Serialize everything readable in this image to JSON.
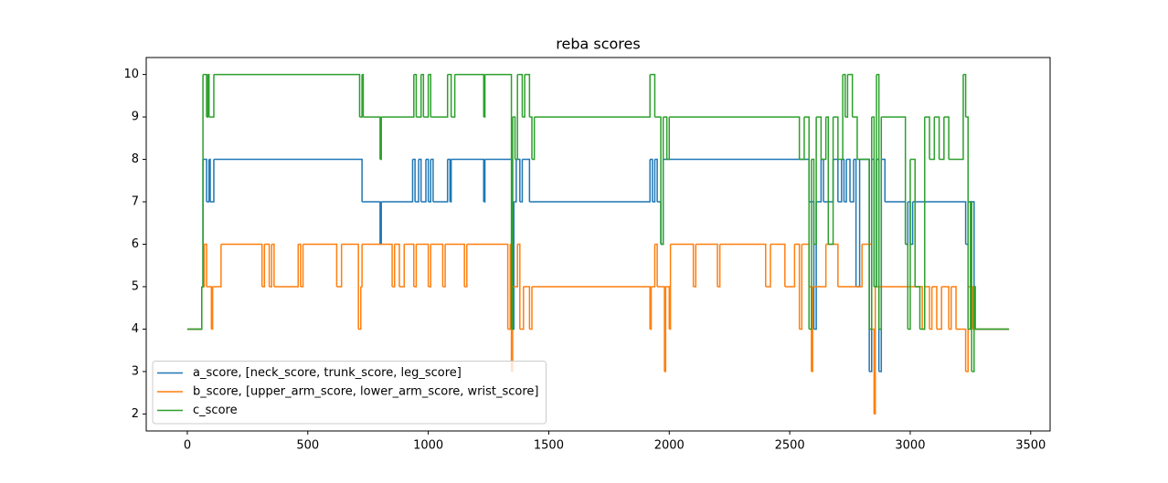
{
  "chart_data": {
    "type": "line",
    "drawstyle": "steps-post",
    "title": "reba scores",
    "xlim": [
      -170.5,
      3580.5
    ],
    "ylim": [
      1.6,
      10.4
    ],
    "xticks": [
      0,
      500,
      1000,
      1500,
      2000,
      2500,
      3000,
      3500
    ],
    "yticks": [
      2,
      3,
      4,
      5,
      6,
      7,
      8,
      9,
      10
    ],
    "legend": "lower left",
    "series": [
      {
        "name": "a_score, [neck_score, trunk_score, leg_score]",
        "color": "#1f77b4",
        "x": [
          0,
          60,
          65,
          80,
          90,
          95,
          110,
          725,
          800,
          805,
          935,
          945,
          960,
          970,
          990,
          1000,
          1010,
          1020,
          1080,
          1090,
          1095,
          1230,
          1235,
          1350,
          1355,
          1365,
          1380,
          1390,
          1420,
          1920,
          1930,
          1940,
          1950,
          1965,
          1975,
          2580,
          2600,
          2610,
          2630,
          2640,
          2680,
          2700,
          2715,
          2725,
          2735,
          2750,
          2765,
          2775,
          2790,
          2830,
          2840,
          2850,
          2860,
          2870,
          2880,
          2895,
          2980,
          2990,
          3000,
          3010,
          3230,
          3240,
          3265,
          3410
        ],
        "values": [
          4,
          5,
          8,
          7,
          8,
          7,
          8,
          7,
          6,
          7,
          8,
          7,
          8,
          7,
          8,
          7,
          8,
          7,
          8,
          7,
          8,
          7,
          8,
          4,
          7,
          8,
          7,
          8,
          7,
          8,
          7,
          8,
          7,
          6,
          8,
          7,
          4,
          7,
          8,
          7,
          8,
          7,
          8,
          7,
          8,
          7,
          8,
          5,
          8,
          3,
          8,
          5,
          8,
          3,
          8,
          7,
          6,
          7,
          6,
          7,
          6,
          7,
          4,
          4
        ]
      },
      {
        "name": "b_score, [upper_arm_score, lower_arm_score, wrist_score]",
        "color": "#ff7f0e",
        "x": [
          0,
          60,
          70,
          80,
          100,
          105,
          140,
          310,
          320,
          340,
          350,
          360,
          460,
          470,
          480,
          620,
          640,
          710,
          720,
          725,
          850,
          860,
          880,
          900,
          940,
          950,
          1000,
          1010,
          1060,
          1070,
          1150,
          1160,
          1330,
          1340,
          1345,
          1350,
          1370,
          1380,
          1395,
          1420,
          1430,
          1920,
          1925,
          1940,
          1950,
          1980,
          1985,
          2000,
          2005,
          2100,
          2110,
          2200,
          2210,
          2400,
          2420,
          2480,
          2520,
          2540,
          2550,
          2580,
          2590,
          2595,
          2650,
          2700,
          2800,
          2840,
          2850,
          2855,
          3050,
          3060,
          3080,
          3090,
          3110,
          3130,
          3160,
          3170,
          3190,
          3230,
          3240,
          3260,
          3410
        ],
        "values": [
          4,
          5,
          6,
          5,
          4,
          5,
          6,
          5,
          6,
          5,
          6,
          5,
          6,
          5,
          6,
          5,
          6,
          4,
          5,
          6,
          5,
          6,
          5,
          6,
          5,
          6,
          5,
          6,
          5,
          6,
          5,
          6,
          4,
          6,
          3,
          5,
          6,
          4,
          5,
          4,
          5,
          4,
          5,
          6,
          5,
          3,
          5,
          4,
          6,
          5,
          6,
          5,
          6,
          5,
          6,
          5,
          6,
          4,
          6,
          5,
          3,
          5,
          6,
          5,
          6,
          4,
          2,
          5,
          4,
          5,
          4,
          5,
          4,
          5,
          4,
          5,
          4,
          3,
          5,
          4,
          4
        ]
      },
      {
        "name": "c_score",
        "color": "#2ca02c",
        "x": [
          0,
          60,
          65,
          80,
          85,
          90,
          110,
          715,
          725,
          730,
          800,
          805,
          940,
          950,
          970,
          980,
          1000,
          1010,
          1080,
          1095,
          1110,
          1230,
          1235,
          1345,
          1350,
          1360,
          1370,
          1390,
          1400,
          1420,
          1430,
          1440,
          1920,
          1940,
          1965,
          1975,
          1990,
          2000,
          2540,
          2560,
          2580,
          2590,
          2600,
          2610,
          2630,
          2650,
          2660,
          2680,
          2700,
          2720,
          2730,
          2740,
          2760,
          2780,
          2830,
          2840,
          2850,
          2860,
          2870,
          2880,
          2980,
          2990,
          3000,
          3020,
          3040,
          3060,
          3080,
          3100,
          3120,
          3140,
          3160,
          3220,
          3230,
          3240,
          3250,
          3255,
          3265,
          3270,
          3410
        ],
        "values": [
          4,
          5,
          10,
          9,
          10,
          9,
          10,
          9,
          10,
          9,
          8,
          9,
          10,
          9,
          10,
          9,
          10,
          9,
          10,
          9,
          10,
          9,
          10,
          4,
          9,
          8,
          10,
          9,
          10,
          9,
          8,
          9,
          10,
          9,
          6,
          9,
          8,
          9,
          8,
          9,
          4,
          8,
          6,
          9,
          8,
          9,
          6,
          9,
          8,
          10,
          9,
          10,
          9,
          8,
          4,
          9,
          5,
          10,
          4,
          9,
          6,
          4,
          8,
          5,
          4,
          9,
          8,
          9,
          8,
          9,
          8,
          10,
          9,
          4,
          7,
          3,
          5,
          4,
          4
        ]
      }
    ]
  }
}
